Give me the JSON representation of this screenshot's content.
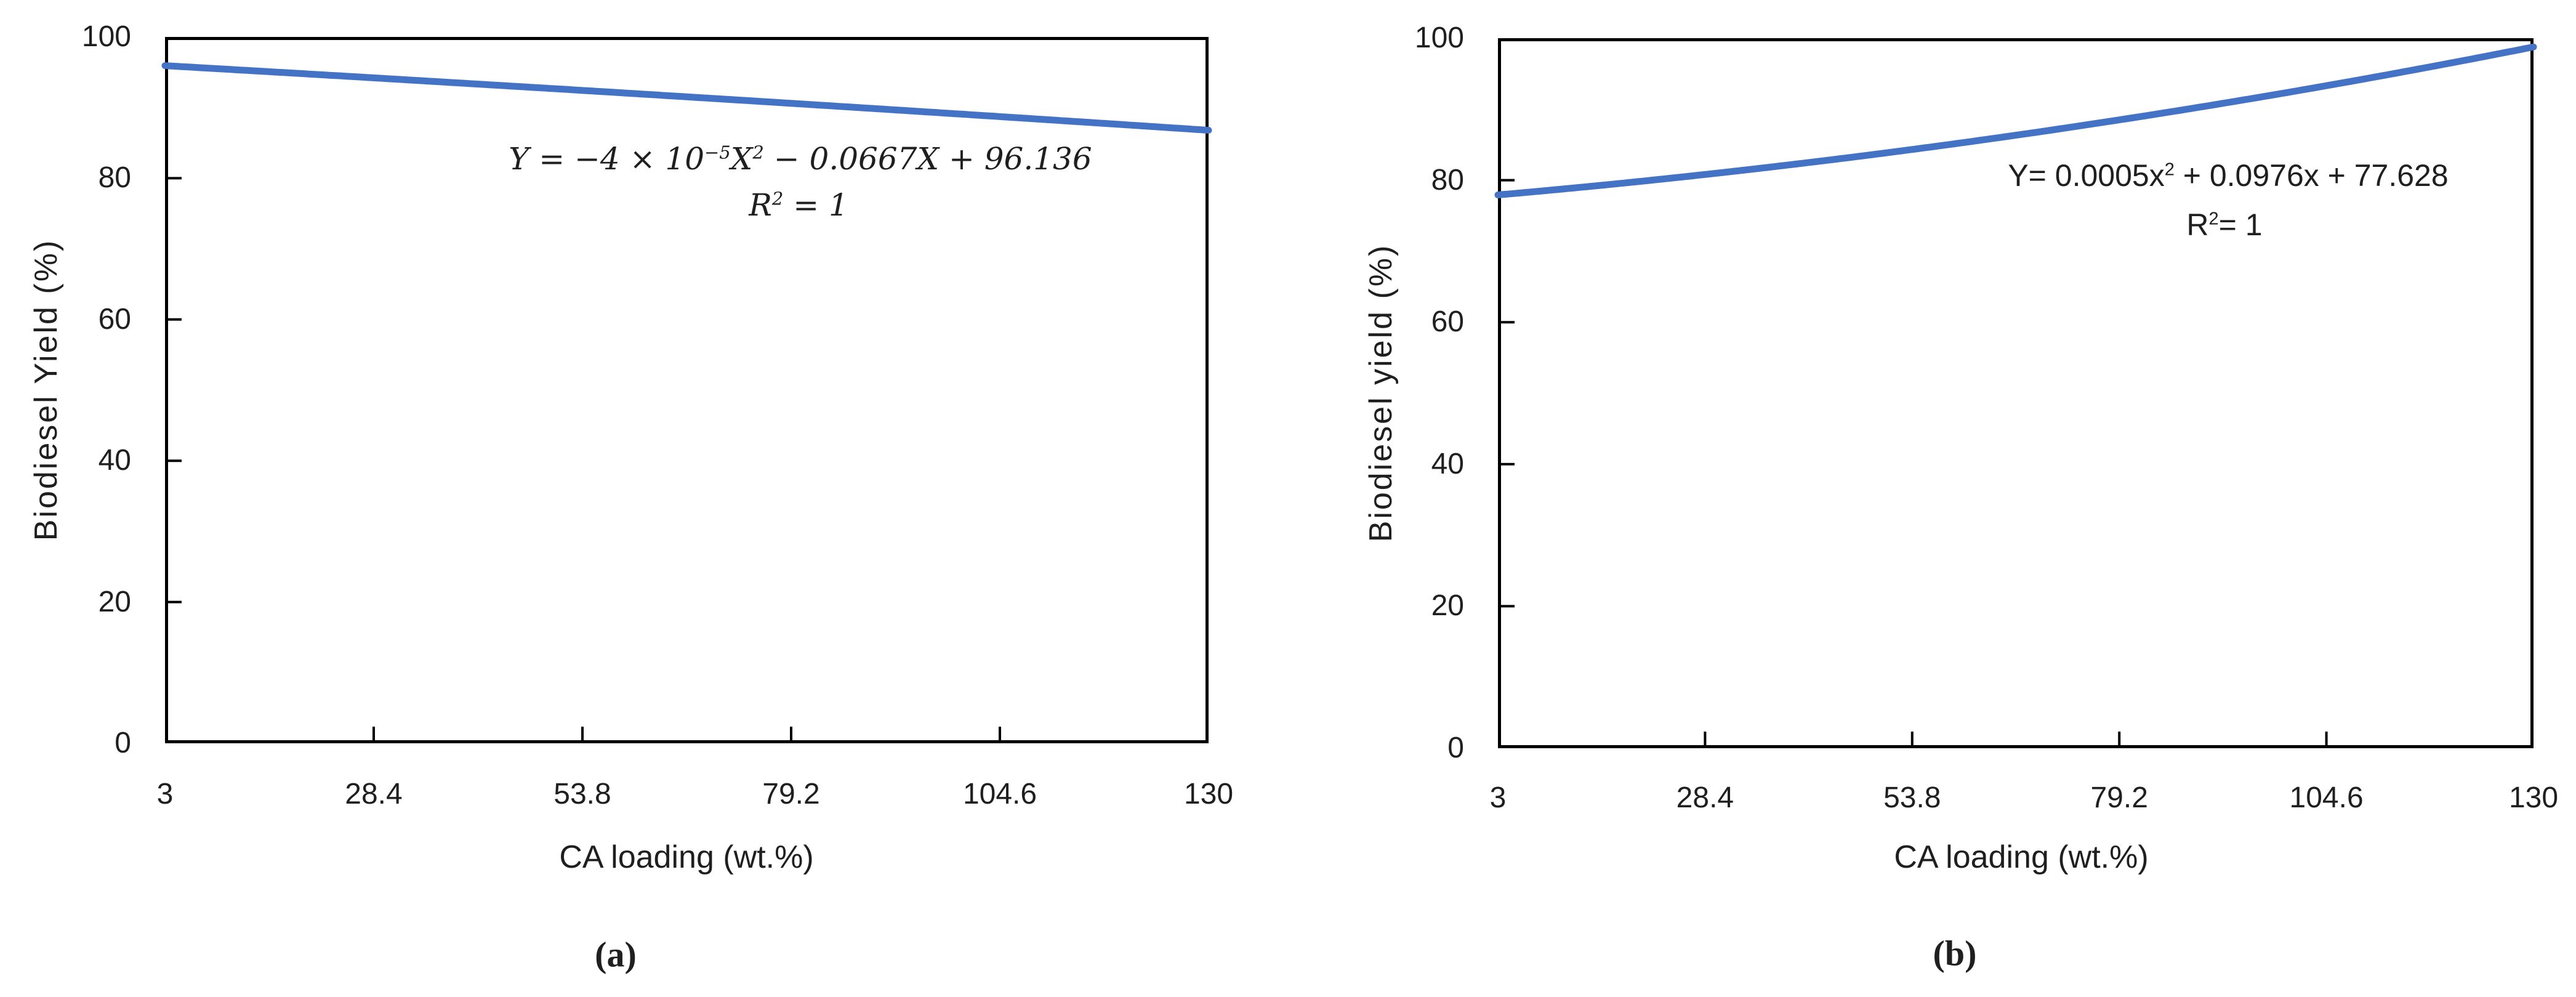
{
  "figure": {
    "background_color": "#ffffff",
    "text_color": "#1f1f1f",
    "axis_color": "#000000"
  },
  "chart_data": [
    {
      "type": "line",
      "panel_label": "(a)",
      "title": "",
      "xlabel": "CA loading (wt.%)",
      "ylabel": "Biodiesel Yield (%)",
      "x_tick_labels": [
        "3",
        "28.4",
        "53.8",
        "79.2",
        "104.6",
        "130"
      ],
      "y_tick_labels": [
        "0",
        "20",
        "40",
        "60",
        "80",
        "100"
      ],
      "xlim": [
        3,
        130
      ],
      "ylim": [
        0,
        100
      ],
      "grid": false,
      "legend": "none",
      "line_color": "#4472C4",
      "equation_text": "Y = −4 × 10−5X2 − 0.0667X + 96.136",
      "equation_segments": [
        {
          "text": "Y = −4 × 10"
        },
        {
          "text": "−5",
          "sup": true
        },
        {
          "text": "X"
        },
        {
          "text": "2",
          "sup": true
        },
        {
          "text": " − 0.0667X + 96.136"
        }
      ],
      "r_squared_text": "R2 = 1",
      "r_squared_segments": [
        {
          "text": "R"
        },
        {
          "text": "2",
          "sup": true
        },
        {
          "text": " = 1"
        }
      ],
      "coefficients": {
        "a": -4e-05,
        "b": -0.0667,
        "c": 96.136
      },
      "x": [
        3,
        28.4,
        53.8,
        79.2,
        104.6,
        130
      ],
      "y": [
        95.94,
        94.21,
        92.43,
        90.6,
        88.72,
        86.79
      ]
    },
    {
      "type": "line",
      "panel_label": "(b)",
      "title": "",
      "xlabel": "CA loading (wt.%)",
      "ylabel": "Biodiesel yield (%)",
      "x_tick_labels": [
        "3",
        "28.4",
        "53.8",
        "79.2",
        "104.6",
        "130"
      ],
      "y_tick_labels": [
        "0",
        "20",
        "40",
        "60",
        "80",
        "100"
      ],
      "xlim": [
        3,
        130
      ],
      "ylim": [
        0,
        100
      ],
      "grid": false,
      "legend": "none",
      "line_color": "#4472C4",
      "equation_text": "Y= 0.0005x2 + 0.0976x + 77.628",
      "equation_segments": [
        {
          "text": "Y= 0.0005x"
        },
        {
          "text": "2",
          "sup": true
        },
        {
          "text": " + 0.0976x + 77.628"
        }
      ],
      "r_squared_text": "R2= 1",
      "r_squared_segments": [
        {
          "text": "R"
        },
        {
          "text": "2",
          "sup": true
        },
        {
          "text": "= 1"
        }
      ],
      "coefficients": {
        "a": 0.0005,
        "b": 0.0976,
        "c": 77.628
      },
      "x": [
        3,
        28.4,
        53.8,
        79.2,
        104.6,
        130
      ],
      "y": [
        77.93,
        80.8,
        84.33,
        88.49,
        93.31,
        98.77
      ]
    }
  ]
}
